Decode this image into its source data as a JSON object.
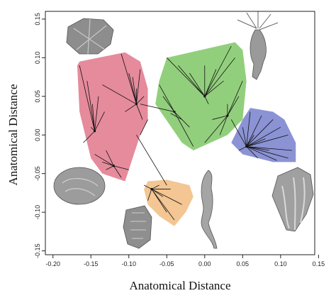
{
  "chart_data": {
    "type": "scatter",
    "xlabel": "Anatomical Distance",
    "ylabel": "Anatomical Distance",
    "xlim": [
      -0.21,
      0.145
    ],
    "ylim": [
      -0.155,
      0.16
    ],
    "xticks": [
      -0.2,
      -0.15,
      -0.1,
      -0.05,
      0.0,
      0.05,
      0.1,
      0.15
    ],
    "yticks": [
      -0.15,
      -0.1,
      -0.05,
      0.0,
      0.05,
      0.1,
      0.15
    ],
    "grid": false,
    "legend": "none",
    "groups": [
      {
        "color": "#e58b9c",
        "hull": [
          [
            -0.165,
            0.095
          ],
          [
            -0.105,
            0.107
          ],
          [
            -0.085,
            0.095
          ],
          [
            -0.075,
            0.06
          ],
          [
            -0.075,
            0.02
          ],
          [
            -0.085,
            0.0
          ],
          [
            -0.105,
            -0.06
          ],
          [
            -0.135,
            -0.05
          ],
          [
            -0.15,
            -0.03
          ],
          [
            -0.165,
            0.03
          ],
          [
            -0.168,
            0.09
          ]
        ],
        "hubs": [
          [
            -0.145,
            0.005
          ],
          [
            -0.09,
            0.04
          ],
          [
            -0.12,
            -0.04
          ]
        ],
        "tips": [
          [
            -0.165,
            0.09
          ],
          [
            -0.155,
            0.07
          ],
          [
            -0.148,
            0.04
          ],
          [
            -0.14,
            0.05
          ],
          [
            -0.135,
            0.065
          ],
          [
            -0.132,
            0.03
          ],
          [
            -0.15,
            0.01
          ],
          [
            -0.16,
            -0.01
          ],
          [
            -0.13,
            -0.02
          ],
          [
            -0.145,
            -0.025
          ],
          [
            -0.11,
            0.105
          ],
          [
            -0.1,
            0.08
          ],
          [
            -0.095,
            0.075
          ],
          [
            -0.085,
            0.085
          ],
          [
            -0.09,
            0.06
          ],
          [
            -0.08,
            0.05
          ],
          [
            -0.105,
            0.03
          ],
          [
            -0.082,
            0.02
          ],
          [
            -0.1,
            -0.045
          ],
          [
            -0.11,
            -0.055
          ],
          [
            -0.13,
            -0.045
          ],
          [
            -0.135,
            -0.035
          ]
        ]
      },
      {
        "color": "#92cf7d",
        "hull": [
          [
            -0.05,
            0.1
          ],
          [
            0.04,
            0.12
          ],
          [
            0.05,
            0.11
          ],
          [
            0.055,
            0.07
          ],
          [
            0.05,
            0.02
          ],
          [
            0.03,
            0.0
          ],
          [
            -0.015,
            -0.02
          ],
          [
            -0.03,
            -0.01
          ],
          [
            -0.065,
            0.04
          ],
          [
            -0.06,
            0.07
          ]
        ],
        "hubs": [
          [
            0.0,
            0.05
          ],
          [
            -0.04,
            0.03
          ],
          [
            0.03,
            0.025
          ]
        ],
        "tips": [
          [
            -0.05,
            0.1
          ],
          [
            -0.035,
            0.09
          ],
          [
            -0.02,
            0.08
          ],
          [
            0.0,
            0.09
          ],
          [
            0.015,
            0.085
          ],
          [
            0.035,
            0.115
          ],
          [
            0.04,
            0.1
          ],
          [
            0.05,
            0.07
          ],
          [
            0.045,
            0.05
          ],
          [
            0.025,
            0.07
          ],
          [
            0.03,
            0.04
          ],
          [
            0.01,
            0.02
          ],
          [
            0.02,
            0.0
          ],
          [
            0.0,
            -0.01
          ],
          [
            -0.015,
            -0.015
          ],
          [
            -0.02,
            0.01
          ],
          [
            -0.055,
            0.05
          ],
          [
            -0.06,
            0.065
          ],
          [
            -0.01,
            0.06
          ],
          [
            0.005,
            0.04
          ]
        ]
      },
      {
        "color": "#8b93d4",
        "hull": [
          [
            0.06,
            0.035
          ],
          [
            0.09,
            0.03
          ],
          [
            0.105,
            0.02
          ],
          [
            0.12,
            -0.01
          ],
          [
            0.12,
            -0.035
          ],
          [
            0.09,
            -0.035
          ],
          [
            0.05,
            -0.025
          ],
          [
            0.035,
            -0.01
          ],
          [
            0.04,
            0.0
          ],
          [
            0.05,
            0.02
          ]
        ],
        "hubs": [
          [
            0.055,
            -0.015
          ]
        ],
        "tips": [
          [
            0.06,
            0.03
          ],
          [
            0.075,
            0.025
          ],
          [
            0.09,
            0.02
          ],
          [
            0.1,
            0.01
          ],
          [
            0.11,
            0.0
          ],
          [
            0.115,
            -0.02
          ],
          [
            0.11,
            -0.03
          ],
          [
            0.095,
            -0.033
          ],
          [
            0.085,
            -0.02
          ],
          [
            0.07,
            -0.03
          ],
          [
            0.05,
            0.01
          ],
          [
            0.065,
            0.0
          ],
          [
            0.08,
            -0.005
          ],
          [
            0.045,
            -0.02
          ]
        ]
      },
      {
        "color": "#f3c693",
        "hull": [
          [
            -0.075,
            -0.06
          ],
          [
            -0.05,
            -0.058
          ],
          [
            -0.02,
            -0.065
          ],
          [
            -0.015,
            -0.08
          ],
          [
            -0.025,
            -0.1
          ],
          [
            -0.04,
            -0.118
          ],
          [
            -0.06,
            -0.105
          ],
          [
            -0.075,
            -0.09
          ],
          [
            -0.08,
            -0.07
          ]
        ],
        "hubs": [
          [
            -0.07,
            -0.07
          ]
        ],
        "tips": [
          [
            -0.08,
            -0.065
          ],
          [
            -0.075,
            -0.085
          ],
          [
            -0.06,
            -0.065
          ],
          [
            -0.055,
            -0.08
          ],
          [
            -0.05,
            -0.1
          ],
          [
            -0.04,
            -0.11
          ],
          [
            -0.03,
            -0.09
          ],
          [
            -0.045,
            -0.07
          ]
        ]
      }
    ],
    "links": [
      [
        -0.085,
        0.04,
        -0.04,
        0.03
      ],
      [
        -0.09,
        0.0,
        -0.05,
        -0.065
      ],
      [
        -0.045,
        0.028,
        -0.03,
        0.02
      ],
      [
        0.035,
        0.02,
        0.055,
        -0.015
      ],
      [
        -0.085,
        0.0,
        -0.075,
        0.02
      ]
    ]
  }
}
